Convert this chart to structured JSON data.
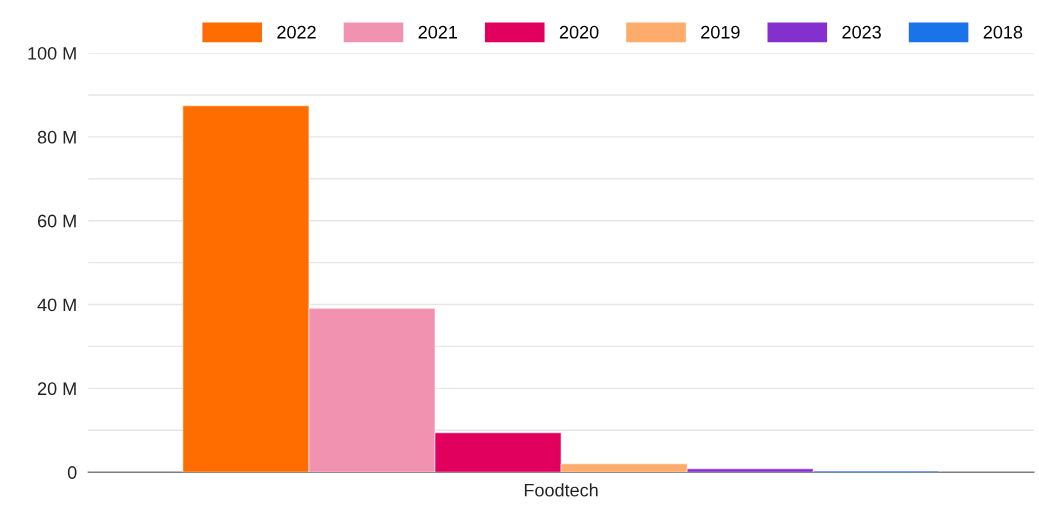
{
  "chart_data": {
    "type": "bar",
    "categories": [
      "Foodtech"
    ],
    "series": [
      {
        "name": "2022",
        "color": "#ff6d01",
        "values": [
          87.4
        ]
      },
      {
        "name": "2021",
        "color": "#f292b1",
        "values": [
          39.1
        ]
      },
      {
        "name": "2020",
        "color": "#e2005e",
        "values": [
          9.4
        ]
      },
      {
        "name": "2019",
        "color": "#ffab6c",
        "values": [
          2.0
        ]
      },
      {
        "name": "2023",
        "color": "#8430ce",
        "values": [
          0.8
        ]
      },
      {
        "name": "2018",
        "color": "#1a73e8",
        "values": [
          0.3
        ]
      }
    ],
    "ylim": [
      0,
      100
    ],
    "yticks": [
      {
        "value": 0,
        "label": "0"
      },
      {
        "value": 10,
        "label": null
      },
      {
        "value": 20,
        "label": "20 M"
      },
      {
        "value": 30,
        "label": null
      },
      {
        "value": 40,
        "label": "40 M"
      },
      {
        "value": 50,
        "label": null
      },
      {
        "value": 60,
        "label": "60 M"
      },
      {
        "value": 70,
        "label": null
      },
      {
        "value": 80,
        "label": "80 M"
      },
      {
        "value": 90,
        "label": null
      },
      {
        "value": 100,
        "label": "100 M"
      }
    ],
    "grid": "y",
    "legend": "top right"
  }
}
